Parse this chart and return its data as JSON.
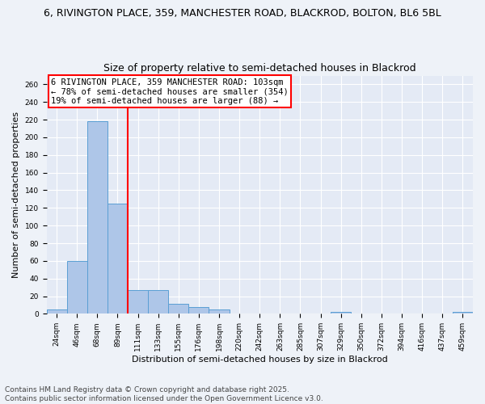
{
  "title_line1": "6, RIVINGTON PLACE, 359, MANCHESTER ROAD, BLACKROD, BOLTON, BL6 5BL",
  "title_line2": "Size of property relative to semi-detached houses in Blackrod",
  "xlabel": "Distribution of semi-detached houses by size in Blackrod",
  "ylabel": "Number of semi-detached properties",
  "categories": [
    "24sqm",
    "46sqm",
    "68sqm",
    "89sqm",
    "111sqm",
    "133sqm",
    "155sqm",
    "176sqm",
    "198sqm",
    "220sqm",
    "242sqm",
    "263sqm",
    "285sqm",
    "307sqm",
    "329sqm",
    "350sqm",
    "372sqm",
    "394sqm",
    "416sqm",
    "437sqm",
    "459sqm"
  ],
  "values": [
    5,
    60,
    218,
    125,
    27,
    27,
    11,
    8,
    5,
    0,
    0,
    0,
    0,
    0,
    2,
    0,
    0,
    0,
    0,
    0,
    2
  ],
  "bar_color": "#aec6e8",
  "bar_edge_color": "#5a9fd4",
  "red_line_index": 3.5,
  "annotation_text": "6 RIVINGTON PLACE, 359 MANCHESTER ROAD: 103sqm\n← 78% of semi-detached houses are smaller (354)\n19% of semi-detached houses are larger (88) →",
  "ylim": [
    0,
    270
  ],
  "yticks": [
    0,
    20,
    40,
    60,
    80,
    100,
    120,
    140,
    160,
    180,
    200,
    220,
    240,
    260
  ],
  "footnote": "Contains HM Land Registry data © Crown copyright and database right 2025.\nContains public sector information licensed under the Open Government Licence v3.0.",
  "bg_color": "#eef2f8",
  "plot_bg_color": "#e4eaf5",
  "grid_color": "#ffffff",
  "title_fontsize": 9,
  "subtitle_fontsize": 9,
  "axis_label_fontsize": 8,
  "tick_fontsize": 6.5,
  "annotation_fontsize": 7.5,
  "footnote_fontsize": 6.5
}
